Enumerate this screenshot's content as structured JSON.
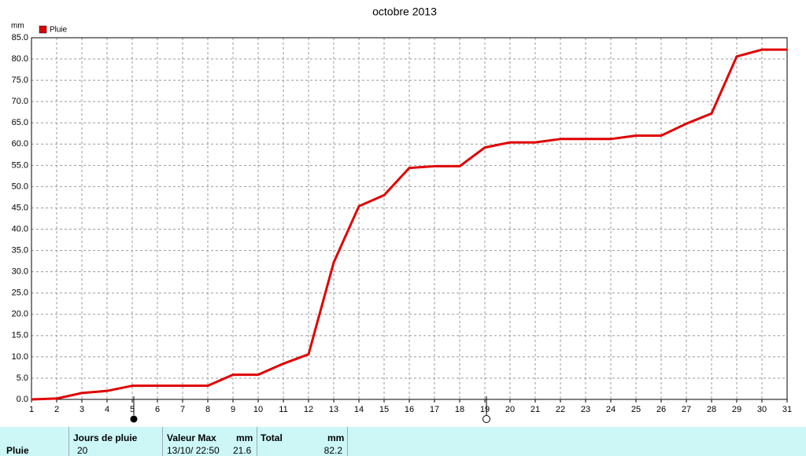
{
  "chart_data": {
    "type": "line",
    "title": "octobre 2013",
    "y_unit": "mm",
    "x": [
      1,
      2,
      3,
      4,
      5,
      6,
      7,
      8,
      9,
      10,
      11,
      12,
      13,
      14,
      15,
      16,
      17,
      18,
      19,
      20,
      21,
      22,
      23,
      24,
      25,
      26,
      27,
      28,
      29,
      30,
      31
    ],
    "series": [
      {
        "name": "Pluie",
        "color": "#e00000",
        "values": [
          0,
          0.2,
          1.5,
          2,
          3.2,
          3.2,
          3.2,
          3.2,
          5.8,
          5.8,
          8.4,
          10.6,
          32.2,
          45.4,
          48,
          54.4,
          54.8,
          54.8,
          59.2,
          60.4,
          60.4,
          61.2,
          61.2,
          61.2,
          62,
          62,
          64.8,
          67.2,
          80.6,
          82.2,
          82.2
        ]
      }
    ],
    "xlim": [
      1,
      31
    ],
    "xticks": [
      1,
      2,
      3,
      4,
      5,
      6,
      7,
      8,
      9,
      10,
      11,
      12,
      13,
      14,
      15,
      16,
      17,
      18,
      19,
      20,
      21,
      22,
      23,
      24,
      25,
      26,
      27,
      28,
      29,
      30,
      31
    ],
    "ylim": [
      0,
      85
    ],
    "yticks": [
      {
        "value": 0,
        "label": "0.0"
      },
      {
        "value": 5,
        "label": "5.0"
      },
      {
        "value": 10,
        "label": "10.0"
      },
      {
        "value": 15,
        "label": "15.0"
      },
      {
        "value": 20,
        "label": "20.0"
      },
      {
        "value": 25,
        "label": "25.0"
      },
      {
        "value": 30,
        "label": "30.0"
      },
      {
        "value": 35,
        "label": "35.0"
      },
      {
        "value": 40,
        "label": "40.0"
      },
      {
        "value": 45,
        "label": "45.0"
      },
      {
        "value": 50,
        "label": "50.0"
      },
      {
        "value": 55,
        "label": "55.0"
      },
      {
        "value": 60,
        "label": "60.0"
      },
      {
        "value": 65,
        "label": "65.0"
      },
      {
        "value": 70,
        "label": "70.0"
      },
      {
        "value": 75,
        "label": "75.0"
      },
      {
        "value": 80,
        "label": "80.0"
      },
      {
        "value": 85,
        "label": "85.0"
      }
    ],
    "grid": true
  },
  "summary": {
    "row_label": "Pluie",
    "headers": [
      "Jours de pluie",
      "Valeur Max",
      "mm",
      "Total",
      "mm"
    ],
    "cells": [
      "20",
      "13/10/ 22:50",
      "21.6",
      "82.2"
    ]
  }
}
